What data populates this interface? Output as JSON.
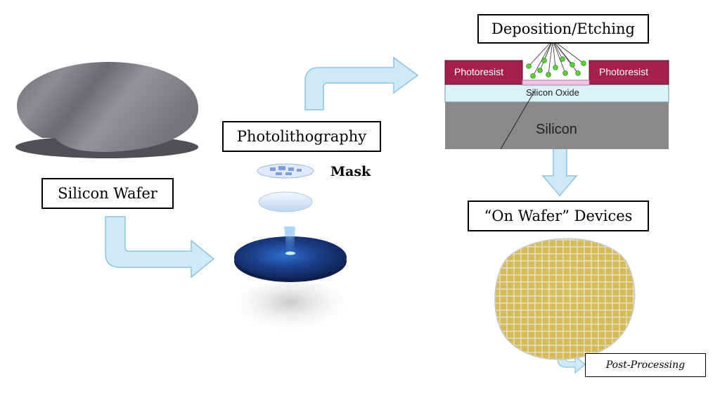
{
  "labels": {
    "silicon_wafer": "Silicon Wafer",
    "photolithography": "Photolithography",
    "mask": "Mask",
    "deposition_etching": "Deposition/Etching",
    "on_wafer_devices": "“On Wafer” Devices",
    "post_processing": "Post-Processing"
  },
  "cross_section": {
    "photoresist_left": "Photoresist",
    "photoresist_right": "Photoresist",
    "silicon_oxide": "Silicon Oxide",
    "silicon": "Silicon"
  },
  "colors": {
    "arrow_fill": "#cfe9f7",
    "arrow_stroke": "#8fc3e3",
    "photoresist": "#a5204e",
    "silicon_oxide": "#d9f3f6",
    "silicon": "#8a8a8a",
    "particle": "#5fcf3e",
    "wafer_gray": "#7d7f85",
    "wafer_blue": "#1c3f8a",
    "die_gold": "#d7b64a"
  }
}
